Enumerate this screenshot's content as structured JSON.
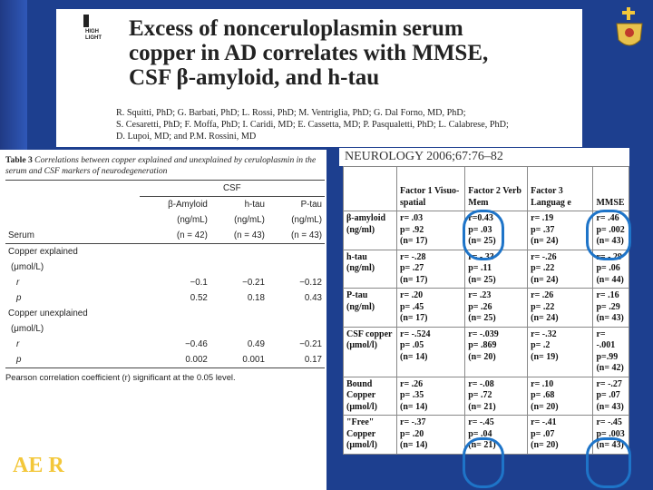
{
  "header": {
    "logo_text": "HIGH LIGHT",
    "title_lines": [
      "Excess of nonceruloplasmin serum",
      "copper in AD correlates with MMSE,",
      "CSF β-amyloid, and h-tau"
    ],
    "author_lines": [
      "R. Squitti, PhD; G. Barbati, PhD; L. Rossi, PhD; M. Ventriglia, PhD; G. Dal Forno, MD, PhD;",
      "S. Cesaretti, PhD; F. Moffa, PhD; I. Caridi, MD; E. Cassetta, MD; P. Pasqualetti, PhD; L. Calabrese, PhD;",
      "D. Lupoi, MD; and P.M. Rossini, MD"
    ],
    "citation": "NEUROLOGY 2006;67:76–82"
  },
  "left_table": {
    "caption_bold": "Table 3",
    "caption_rest": " Correlations between copper explained and unexplained by ceruloplasmin in the serum and CSF markers of neurodegeneration",
    "group_header": "CSF",
    "col_headers": [
      {
        "l1": "β-Amyloid",
        "l2": "(ng/mL)",
        "l3": "(n = 42)"
      },
      {
        "l1": "h-tau",
        "l2": "(ng/mL)",
        "l3": "(n = 43)"
      },
      {
        "l1": "P-tau",
        "l2": "(ng/mL)",
        "l3": "(n = 43)"
      }
    ],
    "row_label": "Serum",
    "sections": [
      {
        "title": "Copper explained",
        "unit": "(μmol/L)",
        "rows": [
          {
            "stat": "r",
            "values": [
              "−0.1",
              "−0.21",
              "−0.12"
            ]
          },
          {
            "stat": "p",
            "values": [
              "0.52",
              "0.18",
              "0.43"
            ]
          }
        ]
      },
      {
        "title": "Copper unexplained",
        "unit": "(μmol/L)",
        "rows": [
          {
            "stat": "r",
            "values": [
              "−0.46",
              "0.49",
              "−0.21"
            ]
          },
          {
            "stat": "p",
            "values": [
              "0.002",
              "0.001",
              "0.17"
            ]
          }
        ]
      }
    ],
    "footnote": "Pearson correlation coefficient (r) significant at the 0.05 level."
  },
  "right_table": {
    "headers": [
      {
        "text": "Factor 1 Visuo-spatial"
      },
      {
        "text": "Factor 2 Verb Mem"
      },
      {
        "text": "Factor 3 Languag e"
      },
      {
        "text": "MMSE"
      }
    ],
    "rows": [
      {
        "label": "β-amyloid (ng/ml)",
        "cells": [
          {
            "r": "r= .03",
            "p": "p= .92",
            "n": "(n= 17)"
          },
          {
            "r": "r=0.43",
            "p": "p= .03",
            "n": "(n= 25)"
          },
          {
            "r": "r= .19",
            "p": "p= .37",
            "n": "(n= 24)"
          },
          {
            "r": "r= .46",
            "p": "p= .002",
            "n": "(n= 43)"
          }
        ]
      },
      {
        "label": "h-tau (ng/ml)",
        "cells": [
          {
            "r": "r= -.28",
            "p": "p= .27",
            "n": "(n= 17)"
          },
          {
            "r": "r= -.33",
            "p": "p= .11",
            "n": "(n= 25)"
          },
          {
            "r": "r= -.26",
            "p": "p= .22",
            "n": "(n= 24)"
          },
          {
            "r": "r= -.29",
            "p": "p= .06",
            "n": "(n= 44)"
          }
        ]
      },
      {
        "label": "P-tau (ng/ml)",
        "cells": [
          {
            "r": "r= .20",
            "p": "p= .45",
            "n": "(n= 17)"
          },
          {
            "r": "r= .23",
            "p": "p= .26",
            "n": "(n= 25)"
          },
          {
            "r": "r= .26",
            "p": "p= .22",
            "n": "(n= 24)"
          },
          {
            "r": "r= .16",
            "p": "p= .29",
            "n": "(n= 43)"
          }
        ]
      },
      {
        "label": "CSF copper (μmol/l)",
        "cells": [
          {
            "r": "r= -.524",
            "p": "p= .05",
            "n": "(n= 14)"
          },
          {
            "r": "r= -.039",
            "p": "p= .869",
            "n": "(n= 20)"
          },
          {
            "r": "r= -.32",
            "p": "p= .2",
            "n": "(n= 19)"
          },
          {
            "r": "r= -.001",
            "p": "p=.99",
            "n": "(n= 42)"
          }
        ]
      },
      {
        "label": "Bound Copper (μmol/l)",
        "cells": [
          {
            "r": "r= .26",
            "p": "p= .35",
            "n": "(n= 14)"
          },
          {
            "r": "r= -.08",
            "p": "p= .72",
            "n": "(n= 21)"
          },
          {
            "r": "r= .10",
            "p": "p= .68",
            "n": "(n= 20)"
          },
          {
            "r": "r= -.27",
            "p": "p= .07",
            "n": "(n= 43)"
          }
        ]
      },
      {
        "label": "\"Free\" Copper (μmol/l)",
        "cells": [
          {
            "r": "r= -.37",
            "p": "p= .20",
            "n": "(n= 14)"
          },
          {
            "r": "r= -.45",
            "p": "p= .04",
            "n": "(n= 21)"
          },
          {
            "r": "r= -.41",
            "p": "p= .07",
            "n": "(n= 20)"
          },
          {
            "r": "r= -.45",
            "p": "p= .003",
            "n": "(n= 43)"
          }
        ]
      }
    ]
  },
  "footer_logo": "AE R",
  "colors": {
    "background": "#1d3f8f",
    "highlight_circle": "#1e74c8",
    "logo": "#f3c73a"
  }
}
